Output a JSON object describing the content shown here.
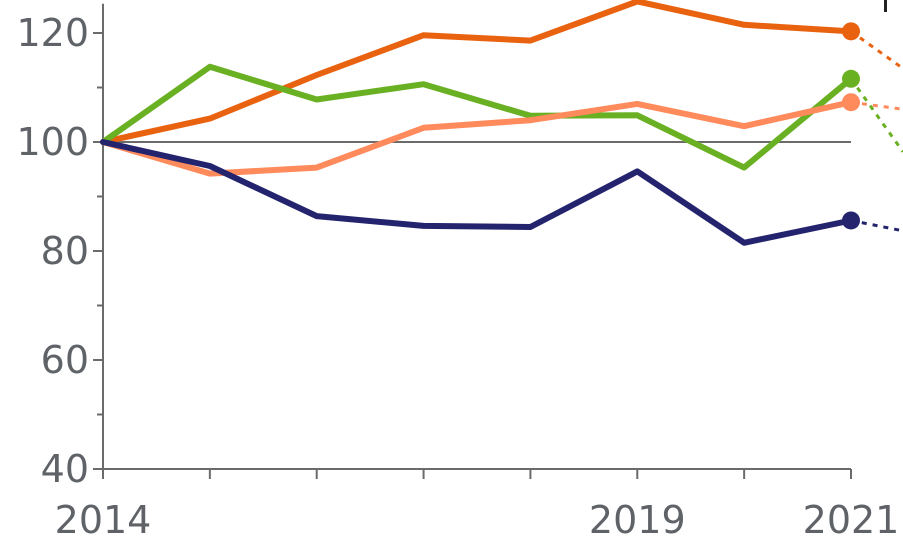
{
  "chart_data": {
    "type": "line",
    "title": "",
    "xlabel": "",
    "ylabel": "",
    "x": [
      2014,
      2015,
      2016,
      2017,
      2018,
      2019,
      2020,
      2021
    ],
    "xlim": [
      2014,
      2021
    ],
    "ylim": [
      40,
      125
    ],
    "y_ticks": [
      40,
      60,
      80,
      100,
      120
    ],
    "x_tick_labels": [
      {
        "x": 2014,
        "label": "2014"
      },
      {
        "x": 2019,
        "label": "2019"
      },
      {
        "x": 2021,
        "label": "2021"
      }
    ],
    "reference_line": 100,
    "grid": false,
    "series": [
      {
        "color": "#e8620f",
        "values": [
          100,
          104.3,
          112.3,
          119.6,
          118.6,
          125.8,
          121.5,
          120.3
        ],
        "projection_end": 113.5
      },
      {
        "color": "#6ab023",
        "values": [
          100,
          113.8,
          107.8,
          110.6,
          104.8,
          104.9,
          95.3,
          111.6
        ],
        "projection_end": 98.2
      },
      {
        "color": "#ff8a5c",
        "values": [
          100,
          94.2,
          95.3,
          102.6,
          104.0,
          107.0,
          102.9,
          107.3
        ],
        "projection_end": 106.0
      },
      {
        "color": "#24246e",
        "values": [
          100,
          95.6,
          86.4,
          84.6,
          84.4,
          94.6,
          81.5,
          85.6
        ],
        "projection_end": 83.7
      }
    ]
  }
}
